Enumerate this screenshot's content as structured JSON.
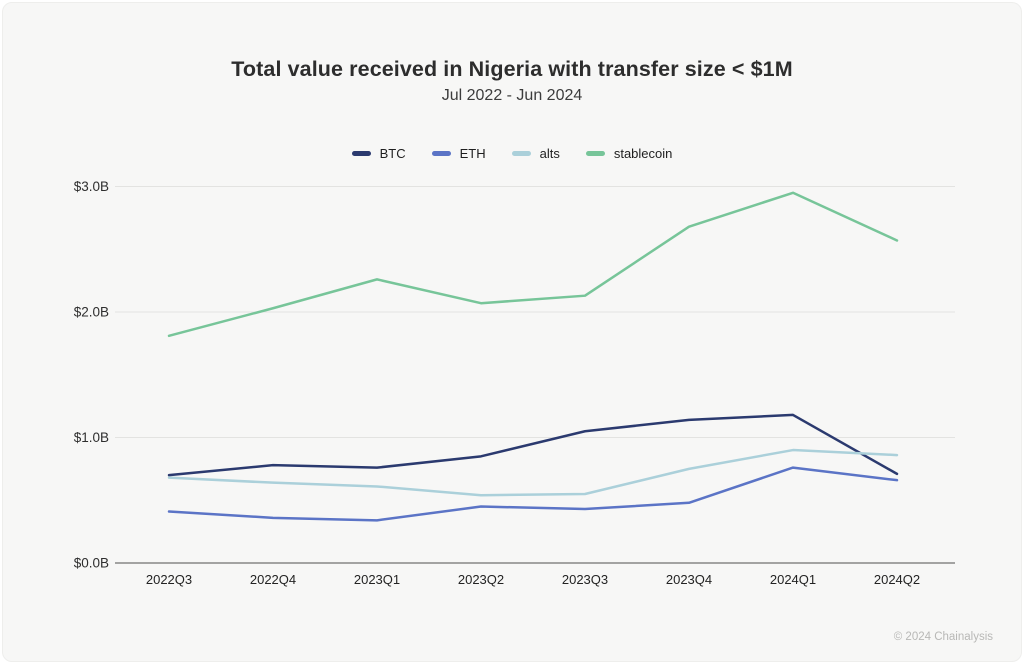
{
  "header": {
    "title": "Total value received in Nigeria with transfer size < $1M",
    "subtitle": "Jul 2022 - Jun 2024"
  },
  "footer": {
    "credit": "© 2024 Chainalysis"
  },
  "chart_data": {
    "type": "line",
    "title": "Total value received in Nigeria with transfer size < $1M",
    "subtitle": "Jul 2022 - Jun 2024",
    "xlabel": "",
    "ylabel": "",
    "categories": [
      "2022Q3",
      "2022Q4",
      "2023Q1",
      "2023Q2",
      "2023Q3",
      "2023Q4",
      "2024Q1",
      "2024Q2"
    ],
    "series": [
      {
        "name": "BTC",
        "color": "#2b3a6f",
        "values": [
          0.7,
          0.78,
          0.76,
          0.85,
          1.05,
          1.14,
          1.18,
          0.71
        ]
      },
      {
        "name": "ETH",
        "color": "#5b74c6",
        "values": [
          0.41,
          0.36,
          0.34,
          0.45,
          0.43,
          0.48,
          0.76,
          0.66
        ]
      },
      {
        "name": "alts",
        "color": "#abd0da",
        "values": [
          0.68,
          0.64,
          0.61,
          0.54,
          0.55,
          0.75,
          0.9,
          0.86
        ]
      },
      {
        "name": "stablecoin",
        "color": "#77c599",
        "values": [
          1.81,
          2.03,
          2.26,
          2.07,
          2.13,
          2.68,
          2.95,
          2.57
        ]
      }
    ],
    "y_ticks": [
      {
        "value": 0,
        "label": "$0.0B"
      },
      {
        "value": 1,
        "label": "$1.0B"
      },
      {
        "value": 2,
        "label": "$2.0B"
      },
      {
        "value": 3,
        "label": "$3.0B"
      }
    ],
    "ylim": [
      0,
      3.2
    ],
    "grid": true,
    "legend_position": "top",
    "unit": "USD billions"
  }
}
